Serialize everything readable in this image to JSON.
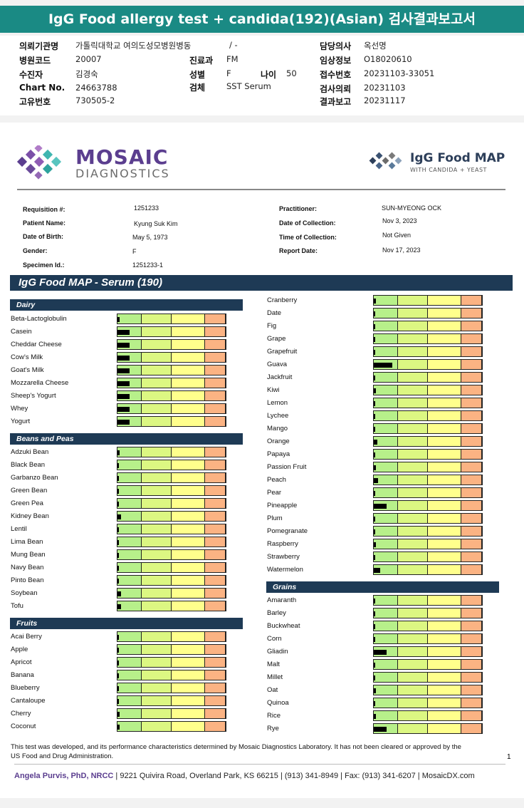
{
  "title": "IgG Food allergy test + candida(192)(Asian) 검사결과보고서",
  "header_left": [
    {
      "label": "의뢰기관명",
      "value": "가톨릭대학교 여의도성모병원병동"
    },
    {
      "label": "병원코드",
      "value": "20007"
    },
    {
      "label": "수진자",
      "value": "김경숙"
    },
    {
      "label": "Chart No.",
      "value": "24663788"
    },
    {
      "label": "고유번호",
      "value": "730505-2"
    }
  ],
  "header_mid": {
    "slash": "/ -",
    "dept_label": "진료과",
    "dept": "FM",
    "sex_label": "성별",
    "sex": "F",
    "age_label": "나이",
    "age": "50",
    "sample_label": "검체",
    "sample": "SST Serum"
  },
  "header_right": [
    {
      "label": "담당의사",
      "value": "옥선명"
    },
    {
      "label": "임상정보",
      "value": "O18020610"
    },
    {
      "label": "접수번호",
      "value": "20231103-33051"
    },
    {
      "label": "검사의뢰",
      "value": "20231103"
    },
    {
      "label": "결과보고",
      "value": "20231117"
    }
  ],
  "brand": {
    "left_main": "MOSAIC",
    "left_sub": "DIAGNOSTICS",
    "right_main": "IgG Food MAP",
    "right_sub": "WITH CANDIDA + YEAST"
  },
  "patient_left": [
    {
      "label": "Requisition #:",
      "value": "1251233"
    },
    {
      "label": "Patient Name:",
      "value": "Kyung Suk Kim"
    },
    {
      "label": "Date of Birth:",
      "value": "May 5, 1973"
    },
    {
      "label": "Gender:",
      "value": "F"
    },
    {
      "label": "Specimen Id.:",
      "value": "1251233-1"
    }
  ],
  "patient_right": [
    {
      "label": "Practitioner:",
      "value": "SUN-MYEONG OCK"
    },
    {
      "label": "Date of Collection:",
      "value": "Nov 3, 2023"
    },
    {
      "label": "Time of Collection:",
      "value": "Not Given"
    },
    {
      "label": "Report Date:",
      "value": "Nov 17, 2023"
    }
  ],
  "map_title": "IgG Food MAP - Serum (190)",
  "sections": {
    "dairy": {
      "title": "Dairy",
      "items": [
        {
          "name": "Beta-Lactoglobulin",
          "level": 0.02
        },
        {
          "name": "Casein",
          "level": 0.11
        },
        {
          "name": "Cheddar Cheese",
          "level": 0.11
        },
        {
          "name": "Cow's Milk",
          "level": 0.11
        },
        {
          "name": "Goat's Milk",
          "level": 0.11
        },
        {
          "name": "Mozzarella Cheese",
          "level": 0.11
        },
        {
          "name": "Sheep's Yogurt",
          "level": 0.11
        },
        {
          "name": "Whey",
          "level": 0.11
        },
        {
          "name": "Yogurt",
          "level": 0.11
        }
      ]
    },
    "beans": {
      "title": "Beans and Peas",
      "items": [
        {
          "name": "Adzuki Bean",
          "level": 0.02
        },
        {
          "name": "Black Bean",
          "level": 0.0
        },
        {
          "name": "Garbanzo Bean",
          "level": 0.01
        },
        {
          "name": "Green Bean",
          "level": 0.01
        },
        {
          "name": "Green Pea",
          "level": 0.01
        },
        {
          "name": "Kidney Bean",
          "level": 0.03
        },
        {
          "name": "Lentil",
          "level": 0.01
        },
        {
          "name": "Lima Bean",
          "level": 0.01
        },
        {
          "name": "Mung Bean",
          "level": 0.0
        },
        {
          "name": "Navy Bean",
          "level": 0.01
        },
        {
          "name": "Pinto Bean",
          "level": 0.01
        },
        {
          "name": "Soybean",
          "level": 0.03
        },
        {
          "name": "Tofu",
          "level": 0.03
        }
      ]
    },
    "fruits": {
      "title": "Fruits",
      "items": [
        {
          "name": "Acai Berry",
          "level": 0.0
        },
        {
          "name": "Apple",
          "level": 0.0
        },
        {
          "name": "Apricot",
          "level": 0.01
        },
        {
          "name": "Banana",
          "level": 0.01
        },
        {
          "name": "Blueberry",
          "level": 0.0
        },
        {
          "name": "Cantaloupe",
          "level": 0.0
        },
        {
          "name": "Cherry",
          "level": 0.02
        },
        {
          "name": "Coconut",
          "level": 0.02
        }
      ]
    },
    "fruits2": {
      "title": "",
      "items": [
        {
          "name": "Cranberry",
          "level": 0.02
        },
        {
          "name": "Date",
          "level": 0.0
        },
        {
          "name": "Fig",
          "level": 0.01
        },
        {
          "name": "Grape",
          "level": 0.0
        },
        {
          "name": "Grapefruit",
          "level": 0.01
        },
        {
          "name": "Guava",
          "level": 0.17
        },
        {
          "name": "Jackfruit",
          "level": 0.01
        },
        {
          "name": "Kiwi",
          "level": 0.02
        },
        {
          "name": "Lemon",
          "level": 0.01
        },
        {
          "name": "Lychee",
          "level": 0.01
        },
        {
          "name": "Mango",
          "level": 0.0
        },
        {
          "name": "Orange",
          "level": 0.03
        },
        {
          "name": "Papaya",
          "level": 0.01
        },
        {
          "name": "Passion Fruit",
          "level": 0.02
        },
        {
          "name": "Peach",
          "level": 0.04
        },
        {
          "name": "Pear",
          "level": 0.0
        },
        {
          "name": "Pineapple",
          "level": 0.12
        },
        {
          "name": "Plum",
          "level": 0.01
        },
        {
          "name": "Pomegranate",
          "level": 0.0
        },
        {
          "name": "Raspberry",
          "level": 0.02
        },
        {
          "name": "Strawberry",
          "level": 0.01
        },
        {
          "name": "Watermelon",
          "level": 0.06
        }
      ]
    },
    "grains": {
      "title": "Grains",
      "items": [
        {
          "name": "Amaranth",
          "level": 0.01
        },
        {
          "name": "Barley",
          "level": 0.0
        },
        {
          "name": "Buckwheat",
          "level": 0.01
        },
        {
          "name": "Corn",
          "level": 0.01
        },
        {
          "name": "Gliadin",
          "level": 0.12
        },
        {
          "name": "Malt",
          "level": 0.01
        },
        {
          "name": "Millet",
          "level": 0.01
        },
        {
          "name": "Oat",
          "level": 0.02
        },
        {
          "name": "Quinoa",
          "level": 0.01
        },
        {
          "name": "Rice",
          "level": 0.02
        },
        {
          "name": "Rye",
          "level": 0.12
        }
      ]
    }
  },
  "disclaimer": "This test was developed, and its performance characteristics determined by Mosaic Diagnostics Laboratory. It has not been cleared or approved by the US Food and Drug Administration.",
  "page_number": "1",
  "footer": {
    "name": "Angela Purvis, PhD, NRCC",
    "rest": " | 9221 Quivira Road, Overland Park, KS 66215  |  (913) 341-8949  |  Fax: (913) 341-6207 | MosaicDX.com"
  },
  "colors": {
    "teal_header": "#1a8a84",
    "navy_section": "#1e3a55",
    "zone_green": "#b7f08a",
    "zone_lime": "#dcf782",
    "zone_yellow": "#ffff8c",
    "zone_orange": "#fbb383",
    "brand_purple": "#5b3e8f"
  }
}
